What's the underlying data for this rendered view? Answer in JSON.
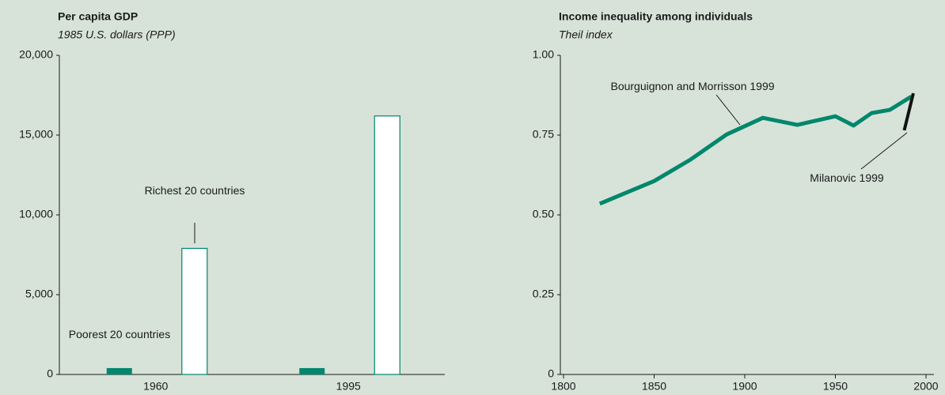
{
  "chart_data": [
    {
      "type": "bar",
      "title": "Per capita GDP",
      "subtitle": "1985 U.S. dollars (PPP)",
      "categories": [
        "1960",
        "1995"
      ],
      "series": [
        {
          "name": "Poorest 20 countries",
          "color": "#00876c",
          "values": [
            400,
            400
          ]
        },
        {
          "name": "Richest 20 countries",
          "color": "#ffffff",
          "edgecolor": "#00876c",
          "values": [
            7900,
            16200
          ]
        }
      ],
      "ylim": [
        0,
        20000
      ],
      "yticks": [
        0,
        {
          "value": 5000,
          "label": "5,000"
        },
        {
          "value": 10000,
          "label": "10,000"
        },
        {
          "value": 15000,
          "label": "15,000"
        },
        {
          "value": 20000,
          "label": "20,000"
        }
      ]
    },
    {
      "type": "line",
      "title": "Income inequality among individuals",
      "subtitle": "Theil index",
      "series": [
        {
          "name": "Bourguignon and Morrisson 1999",
          "color": "#00876c",
          "x": [
            1820,
            1850,
            1870,
            1890,
            1910,
            1929,
            1950,
            1960,
            1970,
            1980,
            1992
          ],
          "values": [
            0.535,
            0.606,
            0.673,
            0.752,
            0.804,
            0.782,
            0.809,
            0.78,
            0.819,
            0.829,
            0.871
          ]
        },
        {
          "name": "Milanovic 1999",
          "color": "#111111",
          "x": [
            1988,
            1993
          ],
          "values": [
            0.765,
            0.881
          ]
        }
      ],
      "xlim": [
        1800,
        2000
      ],
      "xticks": [
        1800,
        1850,
        1900,
        1950,
        2000
      ],
      "ylim": [
        0,
        1
      ],
      "yticks": [
        0,
        {
          "value": 0.25,
          "label": "0.25"
        },
        {
          "value": 0.5,
          "label": "0.50"
        },
        {
          "value": 0.75,
          "label": "0.75"
        },
        {
          "value": 1,
          "label": "1.00"
        }
      ]
    }
  ]
}
